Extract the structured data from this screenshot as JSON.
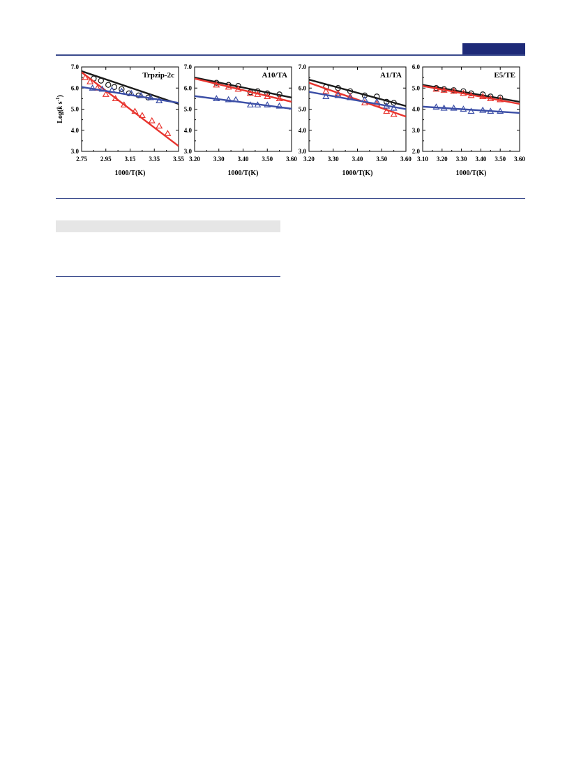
{
  "colors": {
    "black": "#1a1a1a",
    "red": "#e8342e",
    "blue": "#3b4ea6",
    "accent": "#1e2a78"
  },
  "figure": {
    "ylabel_prefix": "Log(",
    "ylabel_italic": "k",
    "ylabel_suffix": " s",
    "ylabel_sup": "-1",
    "ylabel_close": ")"
  },
  "chart_data": [
    {
      "type": "scatter",
      "title": "Trpzip-2c",
      "xlabel": "1000/T(K)",
      "ylabel": "Log(k s-1)",
      "xlim": [
        2.75,
        3.55
      ],
      "ylim": [
        3.0,
        7.0
      ],
      "xticks": [
        "2.75",
        "2.95",
        "3.15",
        "3.35",
        "3.55"
      ],
      "yticks": [
        "3.0",
        "4.0",
        "5.0",
        "6.0",
        "7.0"
      ],
      "series": [
        {
          "color": "black",
          "marker": "circle",
          "x": [
            2.85,
            2.91,
            2.97,
            3.02,
            3.08,
            3.14,
            3.22,
            3.3
          ],
          "y": [
            6.45,
            6.35,
            6.15,
            6.05,
            5.95,
            5.75,
            5.65,
            5.55
          ],
          "fit": [
            [
              2.75,
              6.8
            ],
            [
              3.55,
              5.25
            ]
          ]
        },
        {
          "color": "red",
          "marker": "triangle",
          "x": [
            2.78,
            2.82,
            2.88,
            2.95,
            3.03,
            3.1,
            3.19,
            3.25,
            3.33,
            3.39,
            3.46
          ],
          "y": [
            6.5,
            6.3,
            6.0,
            5.7,
            5.5,
            5.2,
            4.9,
            4.7,
            4.45,
            4.2,
            3.85
          ],
          "fit": [
            [
              2.75,
              6.75
            ],
            [
              3.55,
              3.25
            ]
          ]
        },
        {
          "color": "blue",
          "marker": "triangle",
          "x": [
            2.84,
            2.92,
            3.0,
            3.08,
            3.16,
            3.24,
            3.32,
            3.39
          ],
          "y": [
            6.0,
            5.95,
            5.9,
            5.85,
            5.75,
            5.65,
            5.55,
            5.4
          ],
          "fit": [
            [
              2.75,
              6.05
            ],
            [
              3.55,
              5.3
            ]
          ]
        }
      ]
    },
    {
      "type": "scatter",
      "title": "A10/TA",
      "xlabel": "1000/T(K)",
      "xlim": [
        3.2,
        3.6
      ],
      "ylim": [
        3.0,
        7.0
      ],
      "xticks": [
        "3.20",
        "3.30",
        "3.40",
        "3.50",
        "3.60"
      ],
      "yticks": [
        "3.0",
        "4.0",
        "5.0",
        "6.0",
        "7.0"
      ],
      "series": [
        {
          "color": "black",
          "marker": "circle",
          "x": [
            3.29,
            3.34,
            3.38,
            3.43,
            3.46,
            3.5,
            3.55
          ],
          "y": [
            6.25,
            6.15,
            6.1,
            5.8,
            5.85,
            5.75,
            5.7
          ],
          "fit": [
            [
              3.2,
              6.5
            ],
            [
              3.6,
              5.55
            ]
          ]
        },
        {
          "color": "red",
          "marker": "triangle",
          "x": [
            3.29,
            3.34,
            3.38,
            3.43,
            3.46,
            3.5,
            3.55
          ],
          "y": [
            6.15,
            6.05,
            5.95,
            5.75,
            5.7,
            5.6,
            5.5
          ],
          "fit": [
            [
              3.2,
              6.45
            ],
            [
              3.6,
              5.35
            ]
          ]
        },
        {
          "color": "blue",
          "marker": "triangle",
          "x": [
            3.29,
            3.34,
            3.37,
            3.43,
            3.46,
            3.5,
            3.55
          ],
          "y": [
            5.5,
            5.45,
            5.45,
            5.2,
            5.2,
            5.2,
            5.15
          ],
          "fit": [
            [
              3.2,
              5.62
            ],
            [
              3.6,
              5.02
            ]
          ]
        }
      ]
    },
    {
      "type": "scatter",
      "title": "A1/TA",
      "xlabel": "1000/T(K)",
      "xlim": [
        3.2,
        3.6
      ],
      "ylim": [
        3.0,
        7.0
      ],
      "xticks": [
        "3.20",
        "3.30",
        "3.40",
        "3.50",
        "3.60"
      ],
      "yticks": [
        "3.0",
        "4.0",
        "5.0",
        "6.0",
        "7.0"
      ],
      "series": [
        {
          "color": "black",
          "marker": "circle",
          "x": [
            3.27,
            3.32,
            3.37,
            3.43,
            3.48,
            3.52,
            3.55
          ],
          "y": [
            6.05,
            6.0,
            5.85,
            5.65,
            5.6,
            5.35,
            5.3
          ],
          "fit": [
            [
              3.2,
              6.4
            ],
            [
              3.6,
              5.15
            ]
          ]
        },
        {
          "color": "red",
          "marker": "triangle",
          "x": [
            3.27,
            3.32,
            3.37,
            3.43,
            3.48,
            3.52,
            3.55
          ],
          "y": [
            5.85,
            5.75,
            5.6,
            5.3,
            5.25,
            4.9,
            4.75
          ],
          "fit": [
            [
              3.2,
              6.25
            ],
            [
              3.6,
              4.65
            ]
          ]
        },
        {
          "color": "blue",
          "marker": "triangle",
          "x": [
            3.27,
            3.32,
            3.37,
            3.43,
            3.48,
            3.52,
            3.55
          ],
          "y": [
            5.6,
            5.65,
            5.55,
            5.45,
            5.35,
            5.15,
            5.05
          ],
          "fit": [
            [
              3.2,
              5.82
            ],
            [
              3.6,
              5.0
            ]
          ]
        }
      ]
    },
    {
      "type": "scatter",
      "title": "E5/TE",
      "xlabel": "1000/T(K)",
      "xlim": [
        3.1,
        3.6
      ],
      "ylim": [
        2.0,
        6.0
      ],
      "xticks": [
        "3.10",
        "3.20",
        "3.30",
        "3.40",
        "3.50",
        "3.60"
      ],
      "yticks": [
        "2.0",
        "3.0",
        "4.0",
        "5.0",
        "6.0"
      ],
      "series": [
        {
          "color": "black",
          "marker": "circle",
          "x": [
            3.17,
            3.21,
            3.26,
            3.31,
            3.35,
            3.41,
            3.45,
            3.5
          ],
          "y": [
            5.0,
            4.95,
            4.9,
            4.85,
            4.75,
            4.7,
            4.6,
            4.55
          ],
          "fit": [
            [
              3.1,
              5.15
            ],
            [
              3.6,
              4.35
            ]
          ]
        },
        {
          "color": "red",
          "marker": "triangle",
          "x": [
            3.17,
            3.21,
            3.26,
            3.31,
            3.35,
            3.41,
            3.45,
            3.5
          ],
          "y": [
            4.95,
            4.9,
            4.85,
            4.75,
            4.65,
            4.6,
            4.5,
            4.45
          ],
          "fit": [
            [
              3.1,
              5.1
            ],
            [
              3.6,
              4.25
            ]
          ]
        },
        {
          "color": "blue",
          "marker": "triangle",
          "x": [
            3.17,
            3.21,
            3.26,
            3.31,
            3.35,
            3.41,
            3.45,
            3.5
          ],
          "y": [
            4.1,
            4.05,
            4.05,
            4.0,
            3.9,
            3.95,
            3.9,
            3.9
          ],
          "fit": [
            [
              3.1,
              4.12
            ],
            [
              3.6,
              3.82
            ]
          ]
        }
      ]
    }
  ]
}
